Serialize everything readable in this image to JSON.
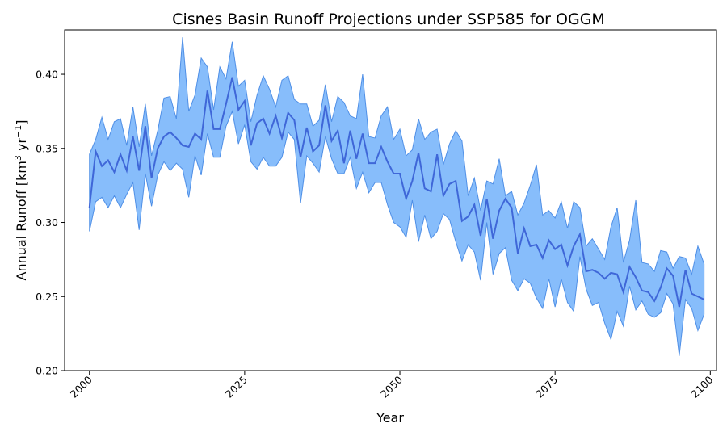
{
  "chart_data": {
    "type": "line",
    "title": "Cisnes Basin Runoff Projections under SSP585 for OGGM",
    "xlabel": "Year",
    "ylabel_main": "Annual Runoff [km",
    "ylabel_sup1": "3",
    "ylabel_mid": " yr",
    "ylabel_sup2": "−1",
    "ylabel_end": "]",
    "xlim": [
      1996,
      2101
    ],
    "ylim": [
      0.2,
      0.43
    ],
    "xticks": [
      2000,
      2025,
      2050,
      2075,
      2100
    ],
    "xtick_labels": [
      "2000",
      "2025",
      "2050",
      "2075",
      "2100"
    ],
    "yticks": [
      0.2,
      0.25,
      0.3,
      0.35,
      0.4
    ],
    "ytick_labels": [
      "0.20",
      "0.25",
      "0.30",
      "0.35",
      "0.40"
    ],
    "grid": false,
    "legend": "none",
    "colors": {
      "band_fill": "#87bdfb",
      "band_edge": "#4f8fe6",
      "mean_line": "#3f67d8"
    },
    "x": [
      2000,
      2001,
      2002,
      2003,
      2004,
      2005,
      2006,
      2007,
      2008,
      2009,
      2010,
      2011,
      2012,
      2013,
      2014,
      2015,
      2016,
      2017,
      2018,
      2019,
      2020,
      2021,
      2022,
      2023,
      2024,
      2025,
      2026,
      2027,
      2028,
      2029,
      2030,
      2031,
      2032,
      2033,
      2034,
      2035,
      2036,
      2037,
      2038,
      2039,
      2040,
      2041,
      2042,
      2043,
      2044,
      2045,
      2046,
      2047,
      2048,
      2049,
      2050,
      2051,
      2052,
      2053,
      2054,
      2055,
      2056,
      2057,
      2058,
      2059,
      2060,
      2061,
      2062,
      2063,
      2064,
      2065,
      2066,
      2067,
      2068,
      2069,
      2070,
      2071,
      2072,
      2073,
      2074,
      2075,
      2076,
      2077,
      2078,
      2079,
      2080,
      2081,
      2082,
      2083,
      2084,
      2085,
      2086,
      2087,
      2088,
      2089,
      2090,
      2091,
      2092,
      2093,
      2094,
      2095,
      2096,
      2097,
      2098,
      2099
    ],
    "series": [
      {
        "role": "mean",
        "values": [
          0.31,
          0.348,
          0.338,
          0.342,
          0.334,
          0.346,
          0.335,
          0.358,
          0.335,
          0.365,
          0.33,
          0.35,
          0.358,
          0.361,
          0.357,
          0.352,
          0.351,
          0.36,
          0.356,
          0.389,
          0.363,
          0.363,
          0.38,
          0.398,
          0.376,
          0.382,
          0.352,
          0.367,
          0.37,
          0.36,
          0.372,
          0.357,
          0.374,
          0.369,
          0.344,
          0.364,
          0.348,
          0.352,
          0.379,
          0.355,
          0.362,
          0.34,
          0.362,
          0.343,
          0.36,
          0.34,
          0.34,
          0.351,
          0.341,
          0.333,
          0.333,
          0.316,
          0.328,
          0.347,
          0.323,
          0.321,
          0.346,
          0.318,
          0.326,
          0.328,
          0.301,
          0.304,
          0.312,
          0.291,
          0.316,
          0.289,
          0.308,
          0.316,
          0.31,
          0.279,
          0.296,
          0.284,
          0.285,
          0.276,
          0.288,
          0.282,
          0.285,
          0.271,
          0.284,
          0.292,
          0.267,
          0.268,
          0.266,
          0.262,
          0.266,
          0.265,
          0.253,
          0.27,
          0.263,
          0.254,
          0.253,
          0.247,
          0.256,
          0.269,
          0.264,
          0.243,
          0.268,
          0.252,
          0.25,
          0.248
        ]
      },
      {
        "role": "upper",
        "values": [
          0.346,
          0.356,
          0.371,
          0.356,
          0.368,
          0.37,
          0.352,
          0.378,
          0.351,
          0.38,
          0.345,
          0.362,
          0.384,
          0.385,
          0.37,
          0.425,
          0.375,
          0.386,
          0.411,
          0.405,
          0.376,
          0.405,
          0.397,
          0.422,
          0.392,
          0.396,
          0.368,
          0.386,
          0.399,
          0.39,
          0.378,
          0.396,
          0.399,
          0.383,
          0.38,
          0.38,
          0.365,
          0.369,
          0.393,
          0.368,
          0.385,
          0.381,
          0.372,
          0.37,
          0.4,
          0.358,
          0.357,
          0.372,
          0.378,
          0.356,
          0.363,
          0.345,
          0.349,
          0.37,
          0.356,
          0.361,
          0.363,
          0.339,
          0.353,
          0.362,
          0.355,
          0.318,
          0.33,
          0.308,
          0.328,
          0.326,
          0.343,
          0.318,
          0.321,
          0.305,
          0.313,
          0.325,
          0.339,
          0.305,
          0.308,
          0.303,
          0.314,
          0.296,
          0.314,
          0.31,
          0.284,
          0.289,
          0.282,
          0.275,
          0.297,
          0.31,
          0.273,
          0.288,
          0.315,
          0.273,
          0.272,
          0.267,
          0.281,
          0.28,
          0.269,
          0.277,
          0.276,
          0.265,
          0.284,
          0.272
        ]
      },
      {
        "role": "lower",
        "values": [
          0.294,
          0.314,
          0.317,
          0.31,
          0.318,
          0.31,
          0.319,
          0.327,
          0.295,
          0.333,
          0.311,
          0.332,
          0.341,
          0.335,
          0.34,
          0.336,
          0.317,
          0.345,
          0.332,
          0.36,
          0.344,
          0.344,
          0.365,
          0.375,
          0.353,
          0.366,
          0.341,
          0.336,
          0.344,
          0.338,
          0.338,
          0.344,
          0.361,
          0.356,
          0.313,
          0.345,
          0.34,
          0.334,
          0.358,
          0.343,
          0.333,
          0.333,
          0.344,
          0.323,
          0.334,
          0.32,
          0.327,
          0.327,
          0.312,
          0.3,
          0.297,
          0.29,
          0.315,
          0.287,
          0.305,
          0.289,
          0.294,
          0.306,
          0.302,
          0.287,
          0.274,
          0.285,
          0.28,
          0.261,
          0.3,
          0.265,
          0.279,
          0.283,
          0.261,
          0.254,
          0.262,
          0.259,
          0.249,
          0.242,
          0.262,
          0.243,
          0.262,
          0.246,
          0.24,
          0.277,
          0.255,
          0.244,
          0.246,
          0.232,
          0.221,
          0.24,
          0.23,
          0.257,
          0.241,
          0.247,
          0.238,
          0.236,
          0.239,
          0.252,
          0.245,
          0.21,
          0.248,
          0.242,
          0.227,
          0.238
        ]
      }
    ]
  }
}
